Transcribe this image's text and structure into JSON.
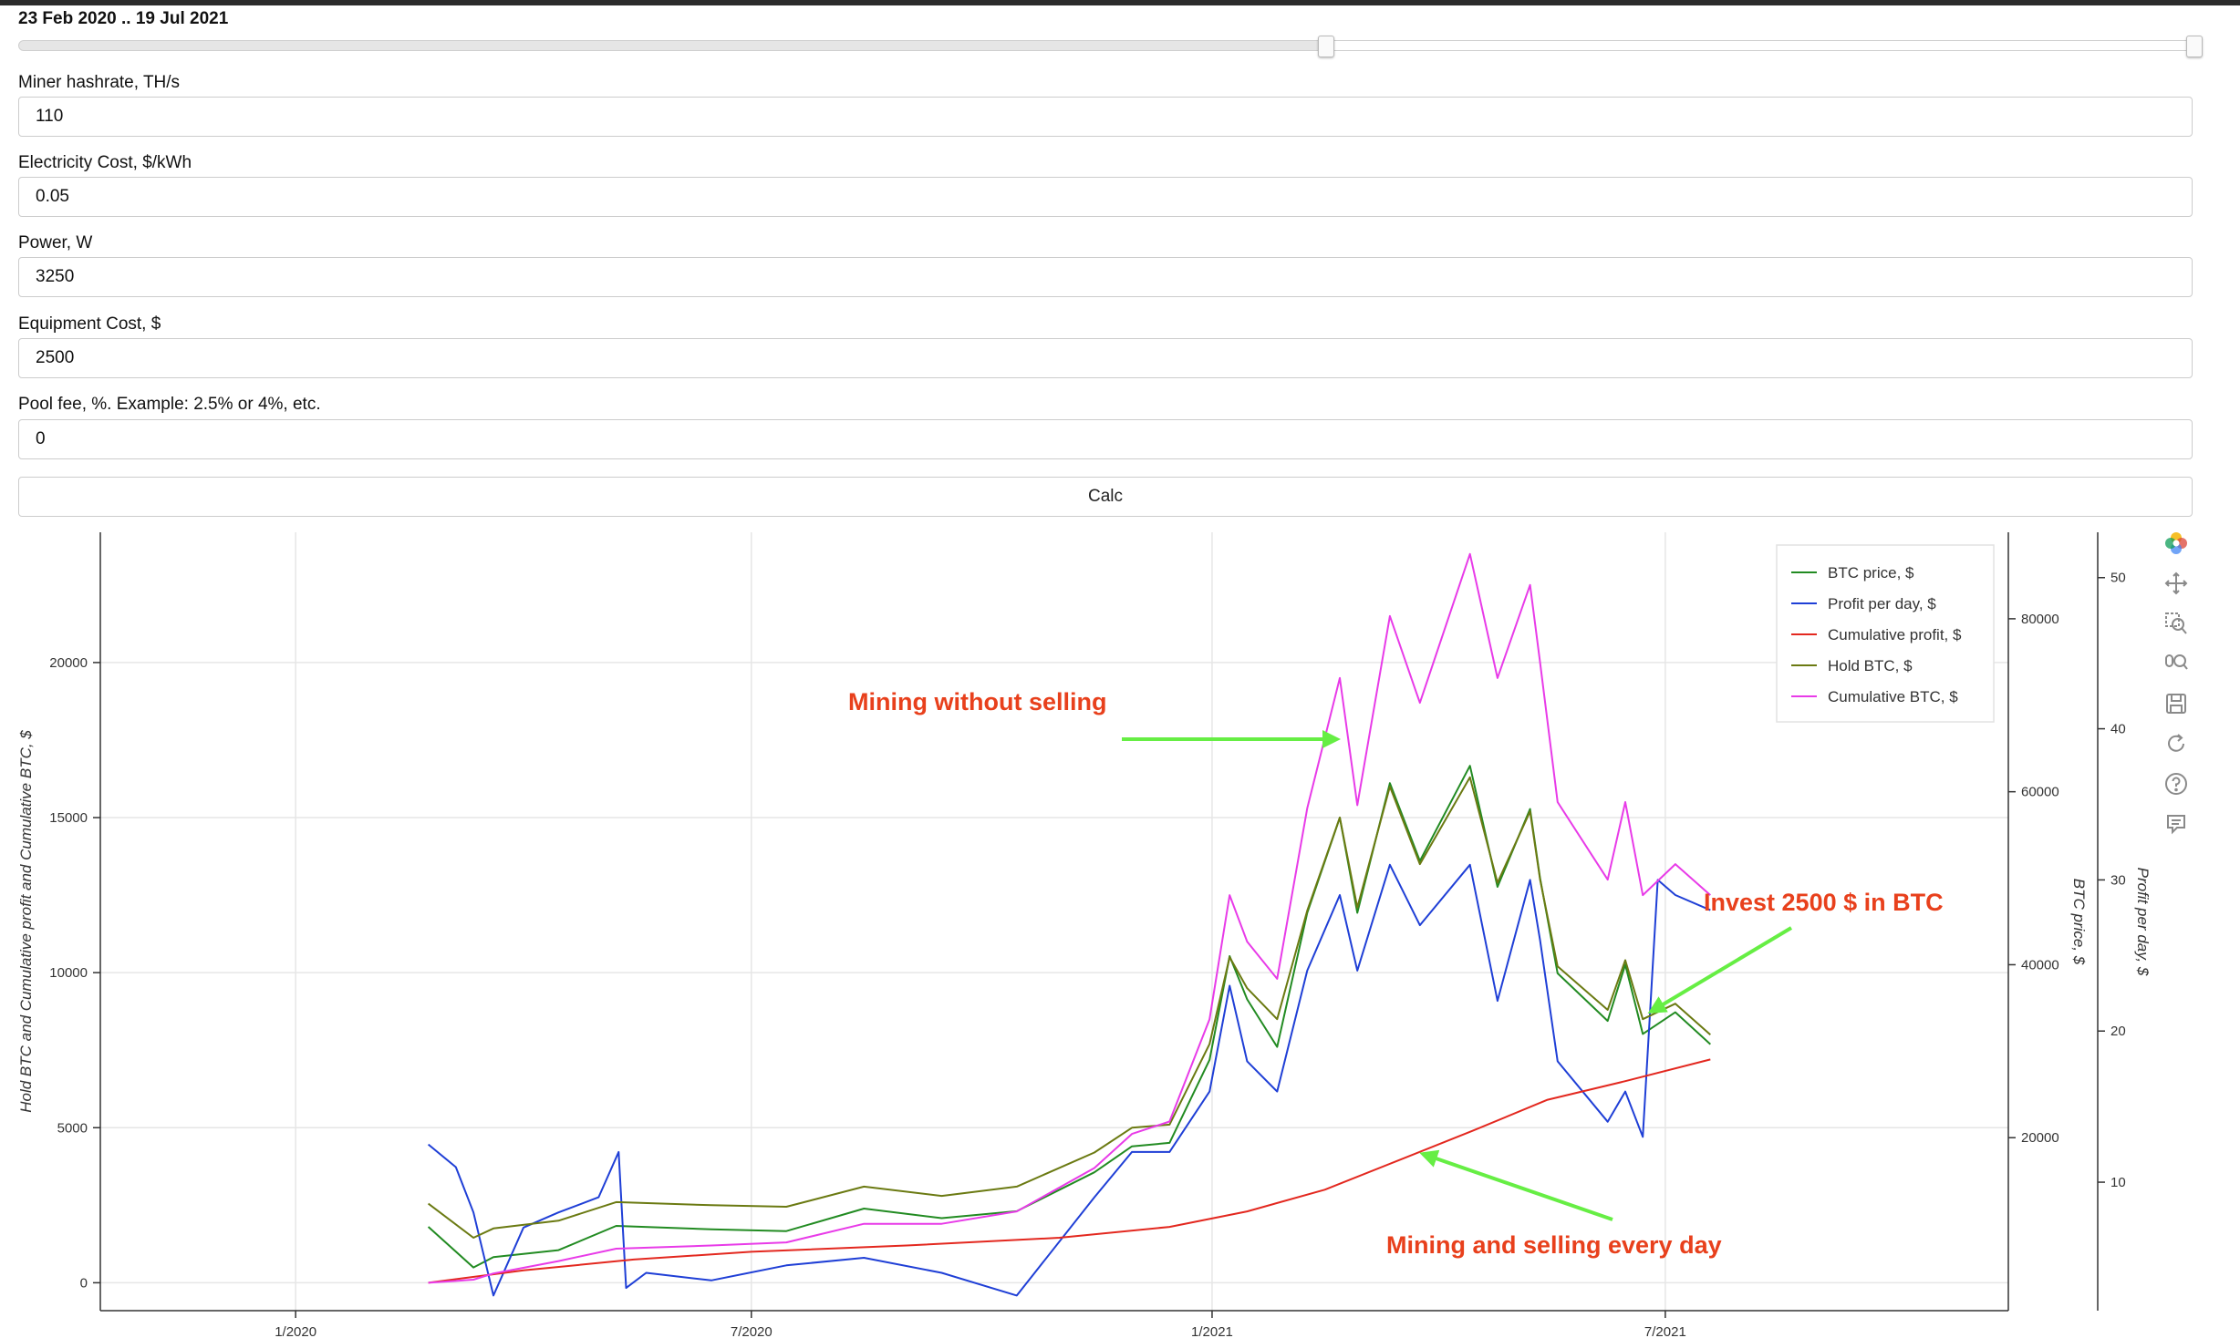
{
  "range_slider": {
    "title": "23 Feb 2020 .. 19 Jul 2021",
    "range_start_fraction": 0.6,
    "range_end_fraction": 1.0
  },
  "form": {
    "fields": [
      {
        "label": "Miner hashrate, TH/s",
        "value": "110"
      },
      {
        "label": "Electricity Cost, $/kWh",
        "value": "0.05"
      },
      {
        "label": "Power, W",
        "value": "3250"
      },
      {
        "label": "Equipment Cost, $",
        "value": "2500"
      },
      {
        "label": "Pool fee, %. Example: 2.5% or 4%, etc.",
        "value": "0"
      }
    ],
    "calc_label": "Calc"
  },
  "toolbar": {
    "icons": [
      "bokeh-logo-icon",
      "pan-icon",
      "box-zoom-icon",
      "wheel-zoom-icon",
      "save-icon",
      "reset-icon",
      "help-icon",
      "hover-icon"
    ]
  },
  "chart_data": {
    "type": "line",
    "x_tick_labels": [
      "1/2020",
      "7/2020",
      "1/2021",
      "7/2021"
    ],
    "x_range": [
      "2019-10-15",
      "2021-11-15"
    ],
    "y_left": {
      "label": "Hold BTC and Cumulative profit and Cumulative BTC, $",
      "range": [
        -900,
        24200
      ],
      "ticks": [
        0,
        5000,
        10000,
        15000,
        20000
      ]
    },
    "y_right_price": {
      "label": "BTC price, $",
      "range": [
        0,
        90000
      ],
      "ticks": [
        20000,
        40000,
        60000,
        80000
      ]
    },
    "y_right_profit": {
      "label": "Profit per day, $",
      "range": [
        1.5,
        53
      ],
      "ticks": [
        10,
        20,
        30,
        40,
        50
      ]
    },
    "grid": true,
    "legend_position": "top-right",
    "series": [
      {
        "name": "BTC price, $",
        "color": "#228b22",
        "axis": "price",
        "x": [
          "2020-02-23",
          "2020-03-12",
          "2020-03-20",
          "2020-04-15",
          "2020-05-08",
          "2020-06-15",
          "2020-07-15",
          "2020-08-15",
          "2020-09-15",
          "2020-10-15",
          "2020-11-15",
          "2020-11-30",
          "2020-12-15",
          "2020-12-31",
          "2021-01-08",
          "2021-01-15",
          "2021-01-27",
          "2021-02-08",
          "2021-02-21",
          "2021-02-28",
          "2021-03-13",
          "2021-03-25",
          "2021-04-14",
          "2021-04-25",
          "2021-05-08",
          "2021-05-12",
          "2021-05-19",
          "2021-06-08",
          "2021-06-15",
          "2021-06-22",
          "2021-07-05",
          "2021-07-19"
        ],
        "y": [
          9700,
          5000,
          6200,
          7000,
          9800,
          9400,
          9200,
          11800,
          10700,
          11500,
          16000,
          19000,
          19400,
          29000,
          41000,
          36000,
          30500,
          46000,
          57000,
          46000,
          61000,
          52000,
          63000,
          49000,
          58000,
          50000,
          39000,
          33500,
          40000,
          32000,
          34500,
          30800
        ]
      },
      {
        "name": "Profit per day, $",
        "color": "#1f3fd6",
        "axis": "profit",
        "x": [
          "2020-02-23",
          "2020-03-05",
          "2020-03-12",
          "2020-03-20",
          "2020-04-01",
          "2020-04-15",
          "2020-05-01",
          "2020-05-09",
          "2020-05-12",
          "2020-05-20",
          "2020-06-15",
          "2020-07-15",
          "2020-08-15",
          "2020-09-15",
          "2020-10-15",
          "2020-11-15",
          "2020-11-30",
          "2020-12-15",
          "2020-12-31",
          "2021-01-08",
          "2021-01-15",
          "2021-01-27",
          "2021-02-08",
          "2021-02-21",
          "2021-02-28",
          "2021-03-13",
          "2021-03-25",
          "2021-04-14",
          "2021-04-25",
          "2021-05-08",
          "2021-05-12",
          "2021-05-19",
          "2021-06-08",
          "2021-06-15",
          "2021-06-22",
          "2021-06-28",
          "2021-07-05",
          "2021-07-19"
        ],
        "y": [
          12.5,
          11,
          8,
          2.5,
          7,
          8,
          9,
          12,
          3,
          4,
          3.5,
          4.5,
          5,
          4,
          2.5,
          9,
          12,
          12,
          16,
          23,
          18,
          16,
          24,
          29,
          24,
          31,
          27,
          31,
          22,
          30,
          26,
          18,
          14,
          16,
          13,
          30,
          29,
          28
        ]
      },
      {
        "name": "Cumulative profit, $",
        "color": "#e3281f",
        "axis": "left",
        "x": [
          "2020-02-23",
          "2020-04-01",
          "2020-05-15",
          "2020-07-01",
          "2020-09-01",
          "2020-11-01",
          "2020-12-15",
          "2021-01-15",
          "2021-02-15",
          "2021-03-15",
          "2021-04-15",
          "2021-05-15",
          "2021-06-15",
          "2021-07-19"
        ],
        "y": [
          0,
          400,
          750,
          1000,
          1200,
          1450,
          1800,
          2300,
          3000,
          3900,
          4900,
          5900,
          6500,
          7200
        ]
      },
      {
        "name": "Hold BTC, $",
        "color": "#6b7a12",
        "axis": "left",
        "x": [
          "2020-02-23",
          "2020-03-12",
          "2020-03-20",
          "2020-04-15",
          "2020-05-08",
          "2020-06-15",
          "2020-07-15",
          "2020-08-15",
          "2020-09-15",
          "2020-10-15",
          "2020-11-15",
          "2020-11-30",
          "2020-12-15",
          "2020-12-31",
          "2021-01-08",
          "2021-01-15",
          "2021-01-27",
          "2021-02-08",
          "2021-02-21",
          "2021-02-28",
          "2021-03-13",
          "2021-03-25",
          "2021-04-14",
          "2021-04-25",
          "2021-05-08",
          "2021-05-12",
          "2021-05-19",
          "2021-06-08",
          "2021-06-15",
          "2021-06-22",
          "2021-07-05",
          "2021-07-19"
        ],
        "y": [
          2550,
          1450,
          1750,
          2000,
          2600,
          2500,
          2450,
          3100,
          2800,
          3100,
          4200,
          5000,
          5100,
          7700,
          10500,
          9500,
          8500,
          12000,
          15000,
          12100,
          16000,
          13500,
          16300,
          12900,
          15200,
          13000,
          10200,
          8800,
          10400,
          8500,
          9000,
          8000
        ]
      },
      {
        "name": "Cumulative BTC, $",
        "color": "#e83be8",
        "axis": "left",
        "x": [
          "2020-02-23",
          "2020-03-12",
          "2020-03-20",
          "2020-04-15",
          "2020-05-08",
          "2020-06-15",
          "2020-07-15",
          "2020-08-15",
          "2020-09-15",
          "2020-10-15",
          "2020-11-15",
          "2020-11-30",
          "2020-12-15",
          "2020-12-31",
          "2021-01-08",
          "2021-01-15",
          "2021-01-27",
          "2021-02-08",
          "2021-02-21",
          "2021-02-28",
          "2021-03-13",
          "2021-03-25",
          "2021-04-14",
          "2021-04-25",
          "2021-05-08",
          "2021-05-12",
          "2021-05-19",
          "2021-06-08",
          "2021-06-15",
          "2021-06-22",
          "2021-07-05",
          "2021-07-19"
        ],
        "y": [
          0,
          100,
          300,
          700,
          1100,
          1200,
          1300,
          1900,
          1900,
          2300,
          3700,
          4800,
          5200,
          8500,
          12500,
          11000,
          9800,
          15300,
          19500,
          15400,
          21500,
          18700,
          23500,
          19500,
          22500,
          20000,
          15500,
          13000,
          15500,
          12500,
          13500,
          12500
        ]
      }
    ],
    "annotations": [
      {
        "text": "Mining without selling",
        "color": "#e8401c"
      },
      {
        "text": "Invest 2500 $ in BTC",
        "color": "#e8401c"
      },
      {
        "text": "Mining and selling every day",
        "color": "#e8401c"
      }
    ]
  }
}
